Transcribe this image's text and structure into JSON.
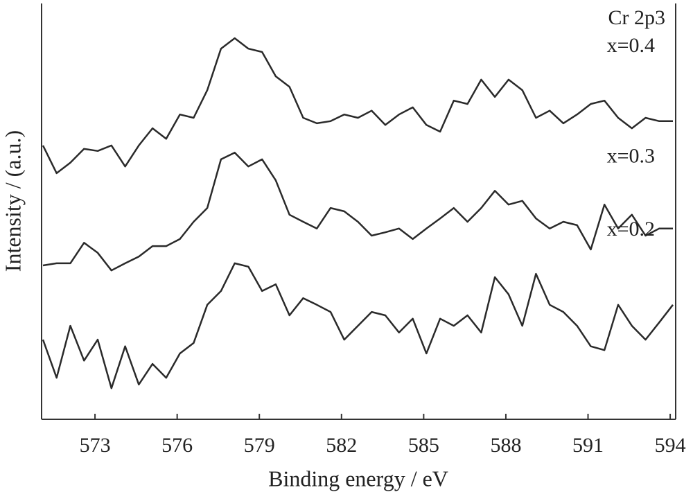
{
  "chart_data": {
    "type": "line",
    "annotation": "Cr 2p3",
    "xlabel": "Binding energy / eV",
    "ylabel": "Intensity / (a.u.)",
    "x": [
      571.1,
      571.6,
      572.1,
      572.6,
      573.1,
      573.6,
      574.1,
      574.6,
      575.1,
      575.6,
      576.1,
      576.6,
      577.1,
      577.6,
      578.1,
      578.6,
      579.1,
      579.6,
      580.1,
      580.6,
      581.1,
      581.6,
      582.1,
      582.6,
      583.1,
      583.6,
      584.1,
      584.6,
      585.1,
      585.6,
      586.1,
      586.6,
      587.1,
      587.6,
      588.1,
      588.6,
      589.1,
      589.6,
      590.1,
      590.6,
      591.1,
      591.6,
      592.1,
      592.6,
      593.1,
      593.6,
      594.1
    ],
    "series": [
      {
        "name": "x=0.4",
        "color": "#2a2a2a",
        "values": [
          65.3,
          58.7,
          61.2,
          64.5,
          64.0,
          65.3,
          60.3,
          65.3,
          69.4,
          66.9,
          72.7,
          71.9,
          78.5,
          88.4,
          90.9,
          88.4,
          87.6,
          81.8,
          79.3,
          71.9,
          70.6,
          71.1,
          72.7,
          71.9,
          73.6,
          70.2,
          72.7,
          74.4,
          70.2,
          68.6,
          76.0,
          75.2,
          81.0,
          76.9,
          81.0,
          78.5,
          71.9,
          73.6,
          70.6,
          72.7,
          75.2,
          76.0,
          71.9,
          69.4,
          71.9,
          71.1,
          71.1
        ]
      },
      {
        "name": "x=0.3",
        "color": "#2a2a2a",
        "values": [
          36.7,
          37.2,
          37.2,
          42.1,
          39.7,
          35.5,
          37.2,
          38.8,
          41.3,
          41.3,
          43.0,
          47.1,
          50.4,
          62.0,
          63.6,
          60.3,
          62.0,
          57.0,
          48.8,
          47.1,
          45.5,
          50.4,
          49.6,
          47.1,
          43.8,
          44.6,
          45.5,
          43.0,
          45.5,
          47.9,
          50.4,
          47.1,
          50.4,
          54.5,
          51.2,
          52.1,
          47.9,
          45.5,
          47.1,
          46.3,
          40.5,
          51.2,
          45.5,
          48.8,
          43.8,
          45.5,
          45.5
        ]
      },
      {
        "name": "x=0.2",
        "color": "#2a2a2a",
        "values": [
          19.0,
          9.9,
          22.3,
          14.0,
          19.0,
          7.4,
          17.4,
          8.3,
          13.2,
          9.9,
          15.7,
          18.2,
          27.3,
          30.6,
          37.2,
          36.4,
          30.6,
          32.2,
          24.8,
          28.9,
          27.3,
          25.6,
          19.0,
          22.3,
          25.6,
          24.8,
          20.7,
          24.0,
          15.7,
          24.0,
          22.3,
          24.8,
          20.7,
          33.9,
          29.8,
          22.3,
          34.7,
          27.3,
          25.6,
          22.3,
          17.4,
          16.5,
          27.3,
          22.3,
          19.0,
          23.1,
          27.3
        ]
      }
    ],
    "xlim": [
      571.05,
      594.2
    ],
    "ylim": [
      0,
      100
    ],
    "xticks": [
      573,
      576,
      579,
      582,
      585,
      588,
      591,
      594
    ]
  }
}
